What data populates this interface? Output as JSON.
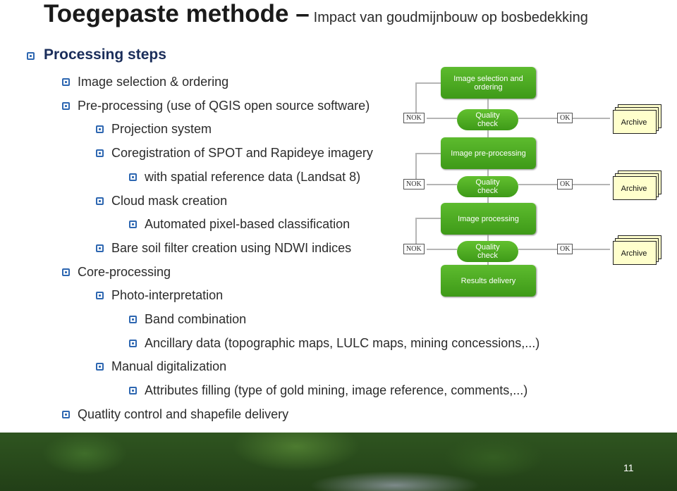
{
  "header": {
    "title": "Toegepaste methode –",
    "subtitle": "Impact van goudmijnbouw op bosbedekking"
  },
  "outline": [
    {
      "text": "Processing steps",
      "items": [
        {
          "text": "Image selection & ordering"
        },
        {
          "text": "Pre-processing (use of QGIS open source software)",
          "items": [
            {
              "text": "Projection system"
            },
            {
              "text": "Coregistration of SPOT and Rapideye imagery",
              "items": [
                {
                  "text": "with spatial reference data (Landsat 8)"
                }
              ]
            },
            {
              "text": "Cloud mask creation",
              "items": [
                {
                  "text": "Automated pixel-based classification"
                }
              ]
            },
            {
              "text": "Bare soil filter creation using NDWI indices"
            }
          ]
        },
        {
          "text": "Core-processing",
          "items": [
            {
              "text": "Photo-interpretation",
              "items": [
                {
                  "text": "Band combination"
                },
                {
                  "text": "Ancillary data (topographic maps, LULC maps, mining concessions,...)"
                }
              ]
            },
            {
              "text": "Manual digitalization",
              "items": [
                {
                  "text": "Attributes filling (type of gold mining, image reference, comments,...)"
                }
              ]
            }
          ]
        },
        {
          "text": "Quatlity control and shapefile delivery"
        }
      ]
    }
  ],
  "flow": {
    "steps": [
      "Image selection and ordering",
      "Image pre-processing",
      "Image processing",
      "Results delivery"
    ],
    "checks": [
      "Quality check",
      "Quality check",
      "Quality check"
    ],
    "nok": [
      "NOK",
      "NOK",
      "NOK"
    ],
    "ok": [
      "OK",
      "OK",
      "OK"
    ],
    "archive": [
      "Archive",
      "Archive",
      "Archive"
    ]
  },
  "footer": {
    "page": "11"
  }
}
